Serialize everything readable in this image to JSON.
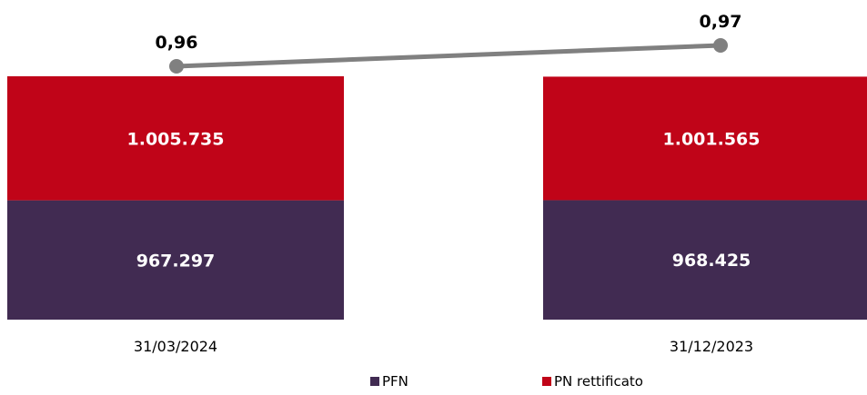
{
  "chart_data": {
    "type": "bar",
    "stacked": true,
    "categories": [
      "31/03/2024",
      "31/12/2023"
    ],
    "series": [
      {
        "name": "PFN",
        "values": [
          967297,
          968425
        ],
        "labels": [
          "967.297",
          "968.425"
        ],
        "color": "#412B52"
      },
      {
        "name": "PN rettificato",
        "values": [
          1005735,
          1001565
        ],
        "labels": [
          "1.005.735",
          "1.001.565"
        ],
        "color": "#C00418"
      }
    ],
    "ratio_line": {
      "values": [
        0.96,
        0.97
      ],
      "labels": [
        "0,96",
        "0,97"
      ],
      "color": "#808080"
    },
    "legend_position": "bottom",
    "grid": false
  }
}
